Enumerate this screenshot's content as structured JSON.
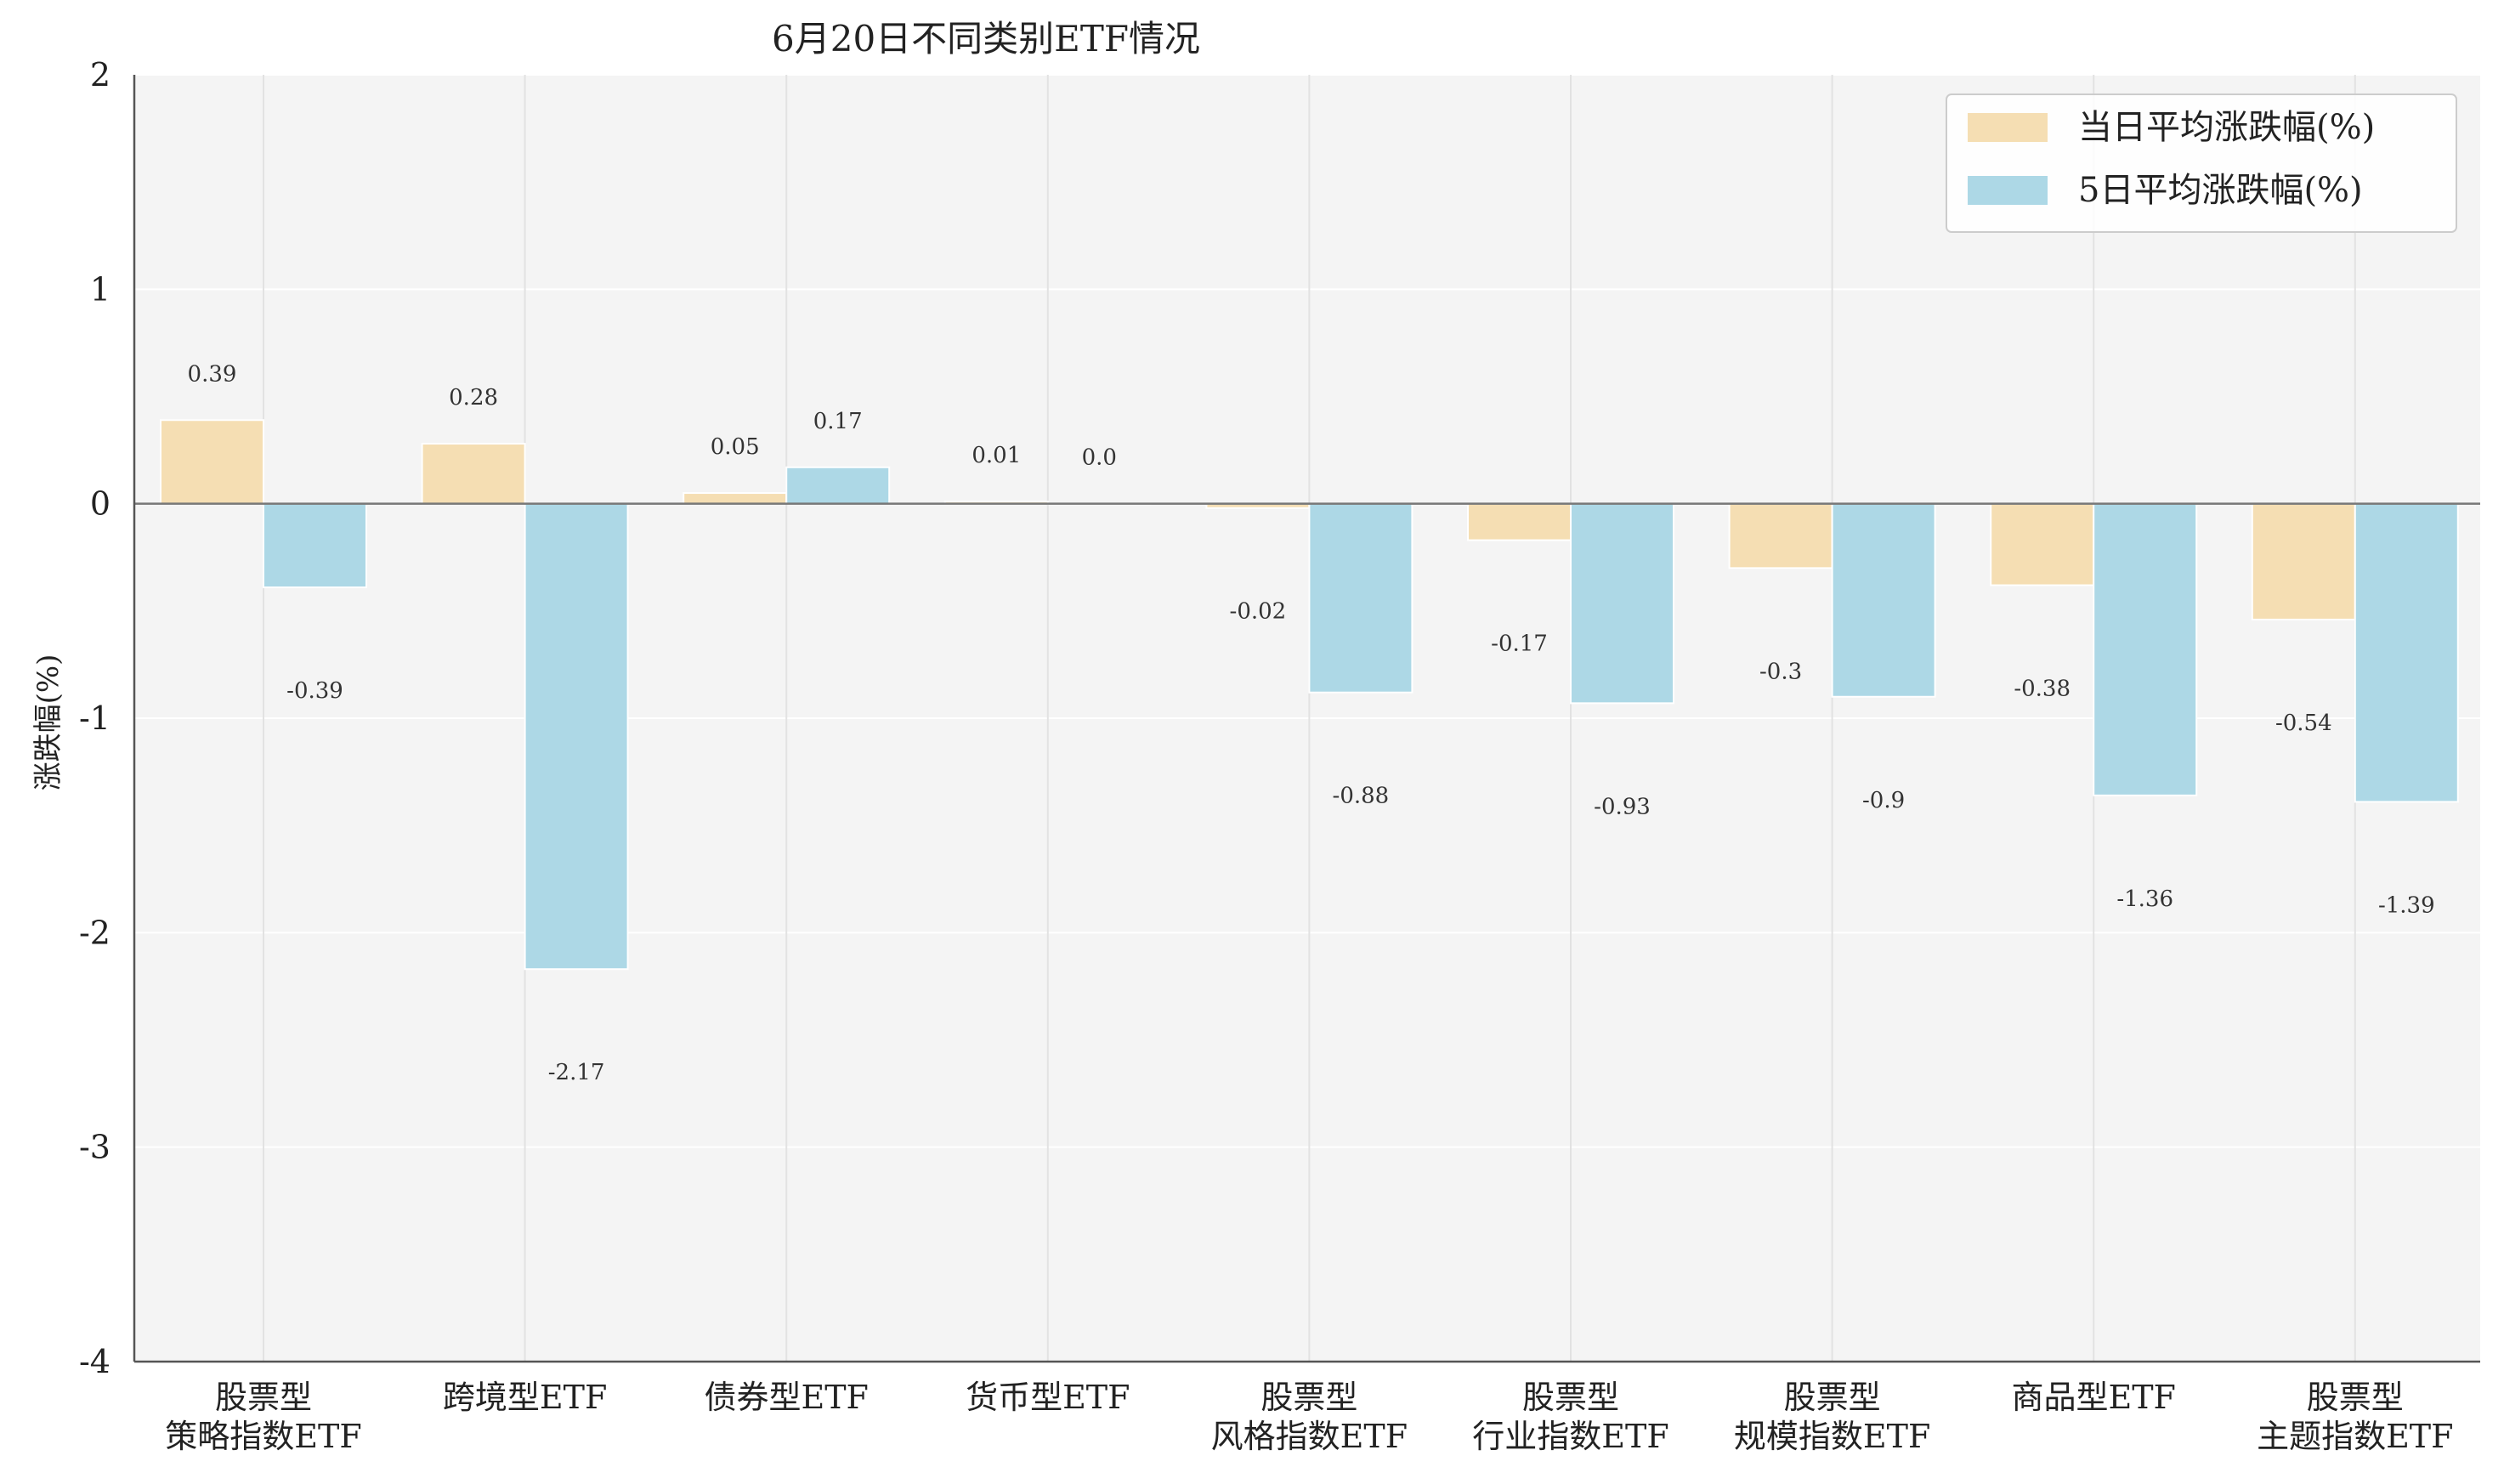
{
  "chart_data": {
    "type": "bar",
    "title": "6月20日不同类别ETF情况",
    "xlabel": "",
    "ylabel": "涨跌幅(%)",
    "ylim": [
      -4,
      2
    ],
    "yticks": [
      2,
      1,
      0,
      -1,
      -2,
      -3,
      -4
    ],
    "grid": true,
    "legend_position": "top-right",
    "categories": [
      [
        "股票型",
        "策略指数ETF"
      ],
      [
        "跨境型ETF"
      ],
      [
        "债券型ETF"
      ],
      [
        "货币型ETF"
      ],
      [
        "股票型",
        "风格指数ETF"
      ],
      [
        "股票型",
        "行业指数ETF"
      ],
      [
        "股票型",
        "规模指数ETF"
      ],
      [
        "商品型ETF"
      ],
      [
        "股票型",
        "主题指数ETF"
      ]
    ],
    "series": [
      {
        "name": "当日平均涨跌幅(%)",
        "color": "#f5deb3",
        "values": [
          0.39,
          0.28,
          0.05,
          0.01,
          -0.02,
          -0.17,
          -0.3,
          -0.38,
          -0.54
        ],
        "labels": [
          "0.39",
          "0.28",
          "0.05",
          "0.01",
          "-0.02",
          "-0.17",
          "-0.3",
          "-0.38",
          "-0.54"
        ]
      },
      {
        "name": "5日平均涨跌幅(%)",
        "color": "#add8e6",
        "values": [
          -0.39,
          -2.17,
          0.17,
          0.0,
          -0.88,
          -0.93,
          -0.9,
          -1.36,
          -1.39
        ],
        "labels": [
          "-0.39",
          "-2.17",
          "0.17",
          "0.0",
          "-0.88",
          "-0.93",
          "-0.9",
          "-1.36",
          "-1.39"
        ]
      }
    ]
  }
}
